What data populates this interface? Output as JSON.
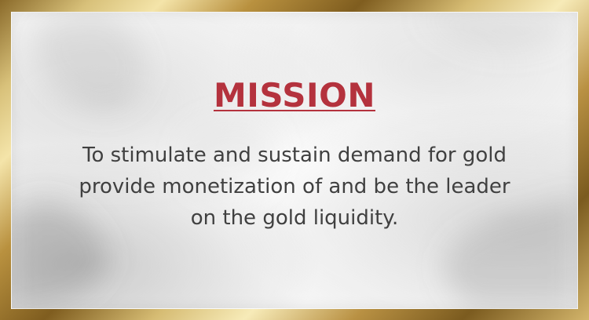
{
  "slide": {
    "title": "MISSION",
    "body": "To stimulate and sustain demand for gold\nprovide monetization of and be the leader\non the gold liquidity."
  },
  "colors": {
    "title": "#b4323d",
    "body_text": "#404040",
    "frame_gold": "#c9a955",
    "panel_background": "#f5f5f5"
  }
}
